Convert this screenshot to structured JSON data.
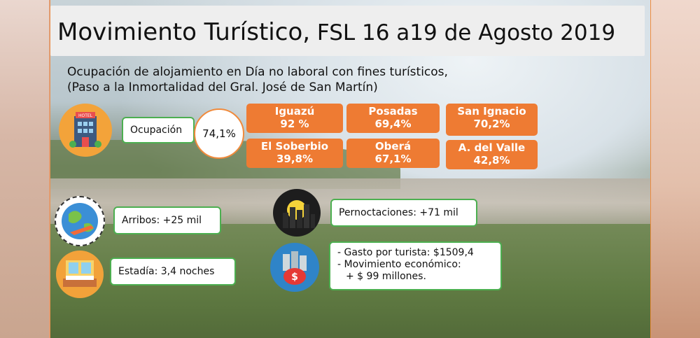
{
  "title": {
    "main": "Movimiento Turístico,",
    "rest": " FSL 16 a19 de Agosto 2019"
  },
  "subtitle": {
    "line1": "Ocupación de alojamiento en Día no laboral con fines turísticos,",
    "line2": "(Paso a la Inmortalidad del  Gral. José de San Martín)"
  },
  "ocupacion": {
    "label": "Ocupación",
    "value": "74,1%",
    "icon_text": "HOTEL"
  },
  "cities": [
    {
      "name": "Iguazú",
      "value": "92 %"
    },
    {
      "name": "Posadas",
      "value": "69,4%"
    },
    {
      "name": "San Ignacio",
      "value": "70,2%"
    },
    {
      "name": "El Soberbio",
      "value": "39,8%"
    },
    {
      "name": "Oberá",
      "value": "67,1%"
    },
    {
      "name": "A. del Valle",
      "value": "42,8%"
    }
  ],
  "arribos": "Arribos: +25 mil",
  "estadia": "Estadía: 3,4 noches",
  "pernoctaciones": "Pernoctaciones: +71 mil",
  "gasto": {
    "line1": "- Gasto por turista: $1509,4",
    "line2": "-  Movimiento económico:",
    "line3": "+ $ 99 millones."
  },
  "money_icon_text": "$",
  "colors": {
    "accent_orange": "#ee7b33",
    "box_border_green": "#4caf50"
  }
}
